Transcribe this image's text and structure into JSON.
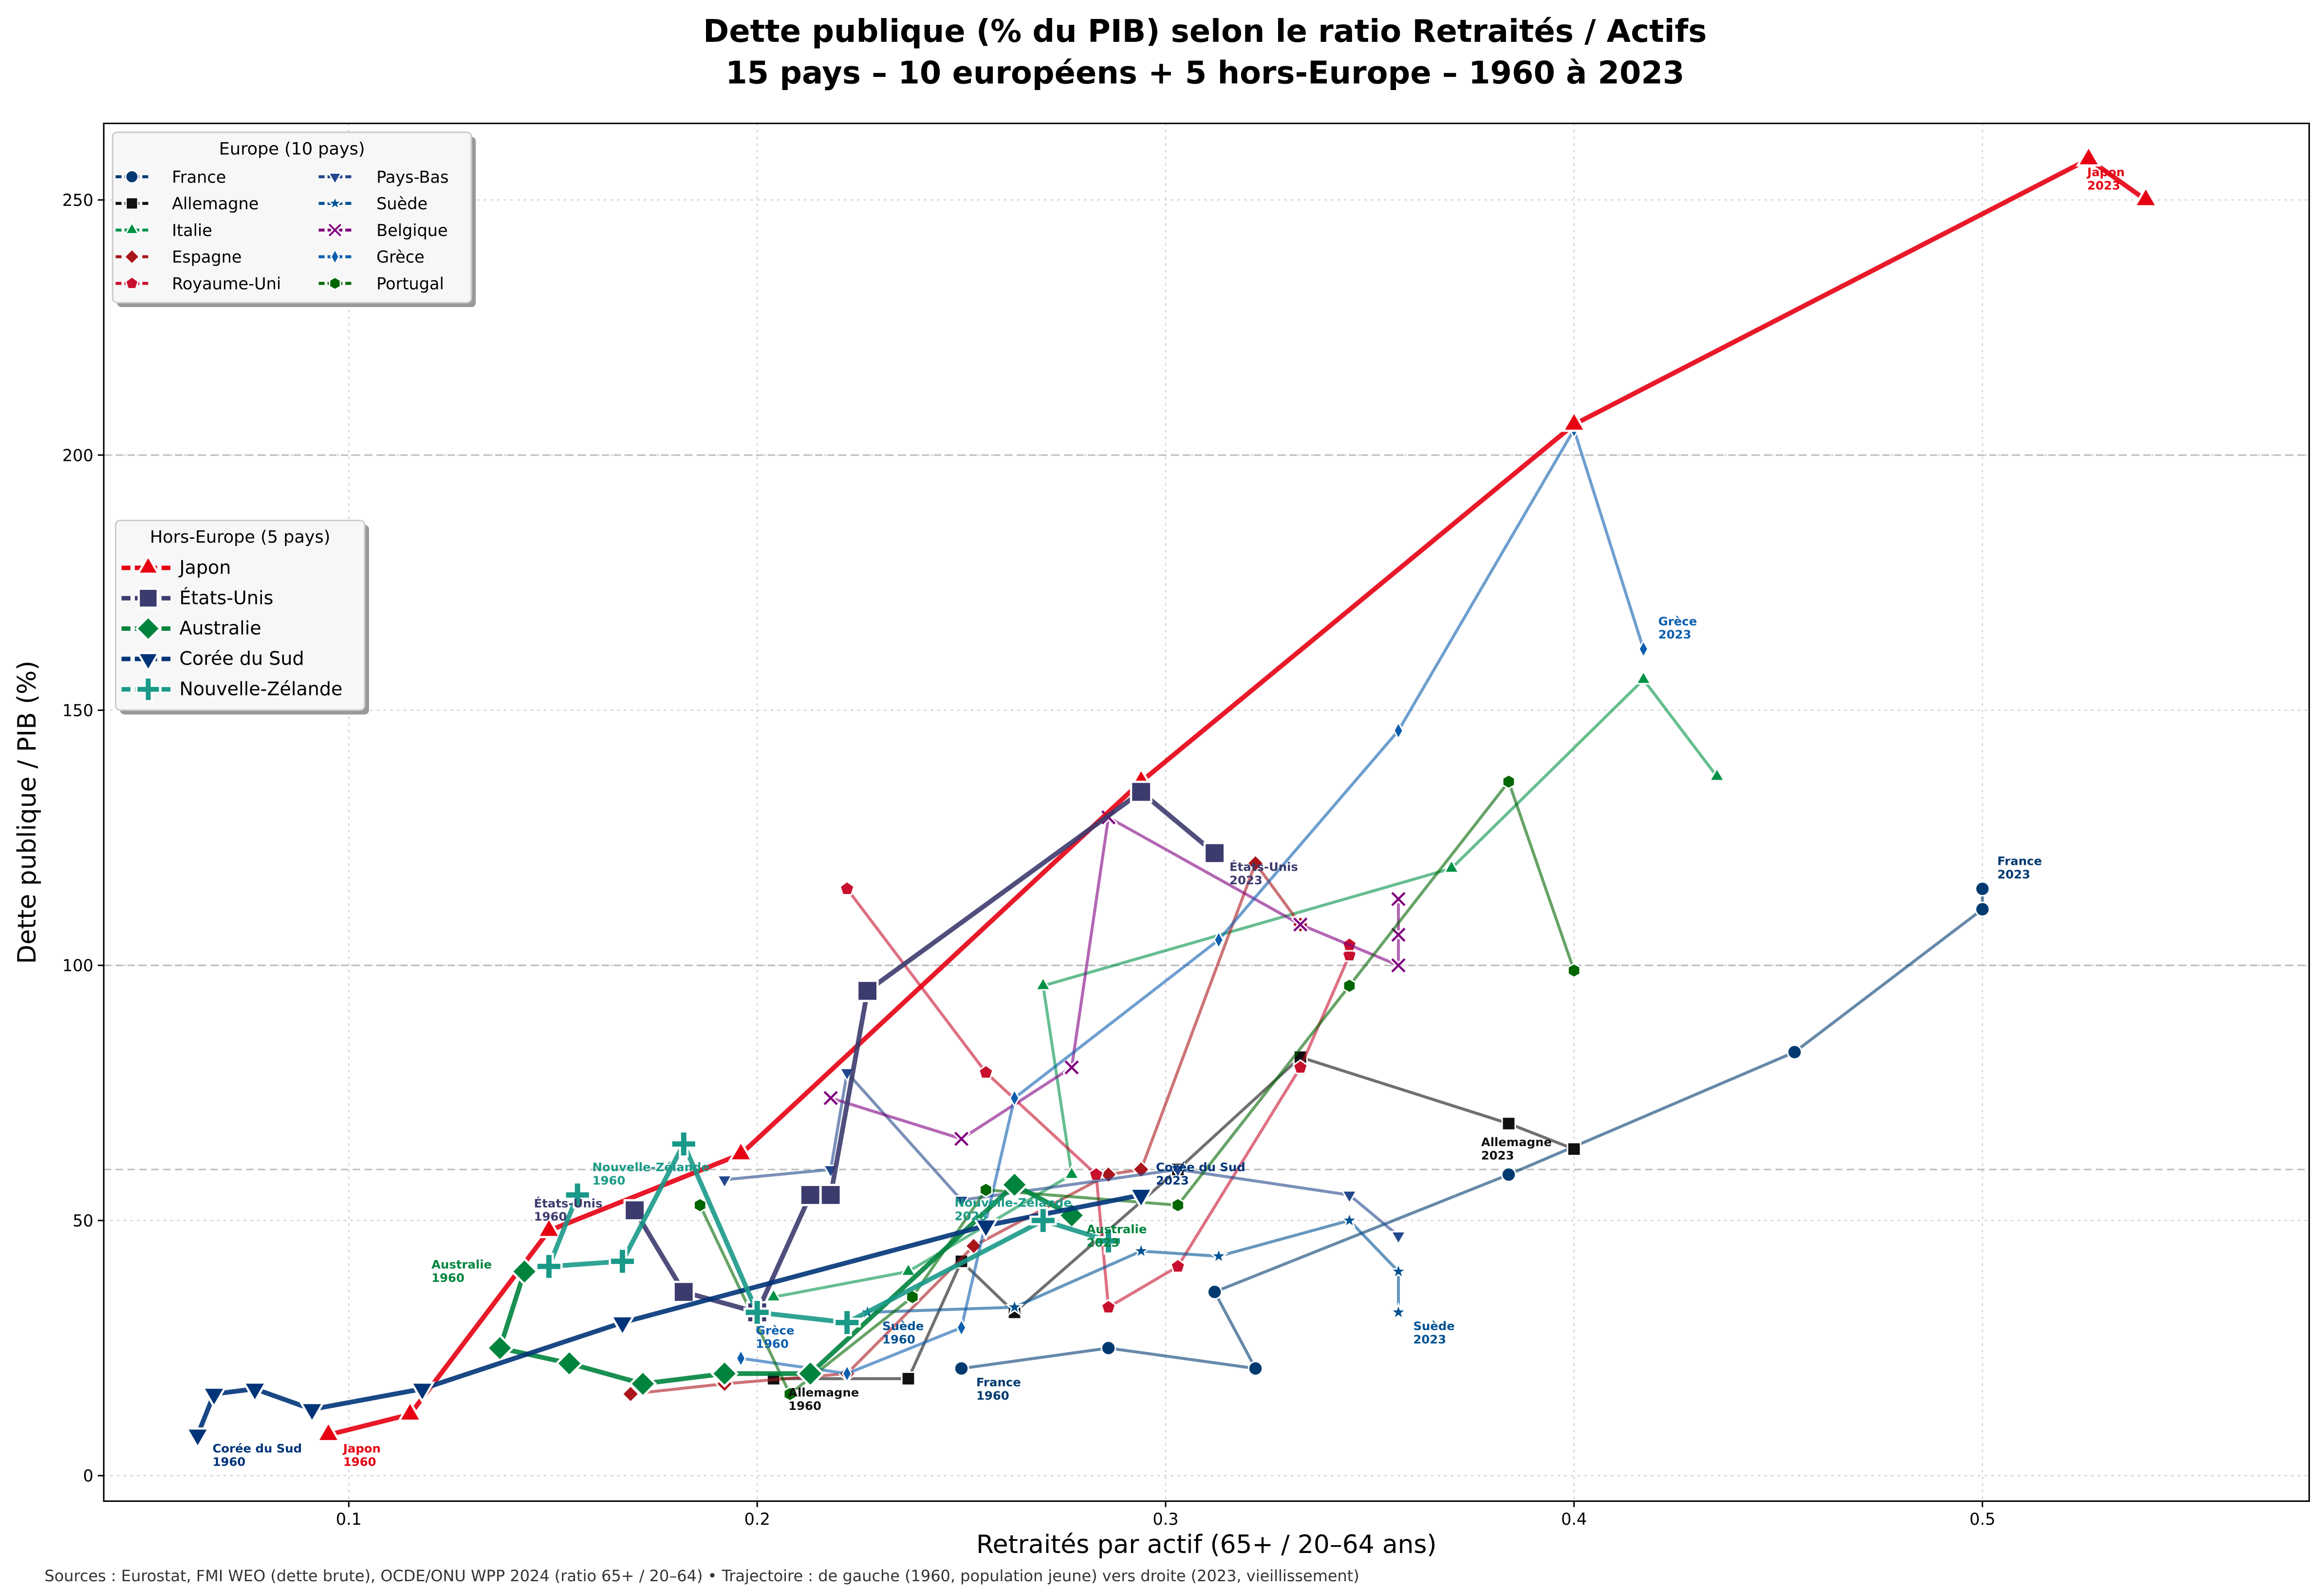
{
  "chart_data": {
    "type": "line",
    "title": [
      "Dette publique (% du PIB) selon le ratio Retraités / Actifs",
      "15 pays – 10 européens + 5 hors-Europe – 1960 à 2023"
    ],
    "xlabel": "Retraités par actif (65+ / 20–64 ans)",
    "ylabel": "Dette publique / PIB (%)",
    "xlim": [
      0.04,
      0.58
    ],
    "ylim": [
      -5,
      265
    ],
    "xticks": [
      "0.1",
      "0.2",
      "0.3",
      "0.4",
      "0.5"
    ],
    "xtick_values": [
      0.1,
      0.2,
      0.3,
      0.4,
      0.5
    ],
    "yticks": [
      "0",
      "50",
      "100",
      "150",
      "200",
      "250"
    ],
    "ytick_values": [
      0,
      50,
      100,
      150,
      200,
      250
    ],
    "grid": true,
    "reference_lines_y": [
      60,
      100,
      200
    ],
    "source_note": "Sources : Eurostat, FMI WEO (dette brute), OCDE/ONU WPP 2024 (ratio 65+ / 20–64) • Trajectoire : de gauche (1960, population jeune) vers droite (2023, vieillissement)",
    "legends": [
      {
        "title": "Europe (10 pays)",
        "placement": "top-left",
        "group": "europe"
      },
      {
        "title": "Hors-Europe (5 pays)",
        "placement": "center-left",
        "group": "hors"
      }
    ],
    "series": [
      {
        "name": "France",
        "group": "europe",
        "color": "#003a70",
        "marker": "circle",
        "points": [
          [
            0.25,
            21
          ],
          [
            0.286,
            25
          ],
          [
            0.322,
            21
          ],
          [
            0.312,
            36
          ],
          [
            0.384,
            59
          ],
          [
            0.454,
            83
          ],
          [
            0.5,
            111
          ],
          [
            0.5,
            115
          ]
        ]
      },
      {
        "name": "Allemagne",
        "group": "europe",
        "color": "#111111",
        "marker": "square",
        "points": [
          [
            0.204,
            19
          ],
          [
            0.237,
            19
          ],
          [
            0.25,
            42
          ],
          [
            0.263,
            32
          ],
          [
            0.303,
            60
          ],
          [
            0.333,
            82
          ],
          [
            0.384,
            69
          ],
          [
            0.4,
            64
          ]
        ]
      },
      {
        "name": "Italie",
        "group": "europe",
        "color": "#009246",
        "marker": "triangle-up",
        "points": [
          [
            0.204,
            35
          ],
          [
            0.237,
            40
          ],
          [
            0.277,
            59
          ],
          [
            0.27,
            96
          ],
          [
            0.37,
            119
          ],
          [
            0.417,
            156
          ],
          [
            0.435,
            137
          ]
        ]
      },
      {
        "name": "Espagne",
        "group": "europe",
        "color": "#aa151b",
        "marker": "diamond",
        "points": [
          [
            0.169,
            16
          ],
          [
            0.192,
            18
          ],
          [
            0.222,
            20
          ],
          [
            0.253,
            45
          ],
          [
            0.286,
            59
          ],
          [
            0.294,
            60
          ],
          [
            0.322,
            120
          ],
          [
            0.333,
            108
          ]
        ]
      },
      {
        "name": "Royaume-Uni",
        "group": "europe",
        "color": "#c8102e",
        "marker": "pentagon",
        "points": [
          [
            0.222,
            115
          ],
          [
            0.256,
            79
          ],
          [
            0.283,
            59
          ],
          [
            0.286,
            33
          ],
          [
            0.303,
            41
          ],
          [
            0.333,
            80
          ],
          [
            0.345,
            102
          ],
          [
            0.345,
            104
          ]
        ]
      },
      {
        "name": "Pays-Bas",
        "group": "europe",
        "color": "#21468b",
        "marker": "triangle-down",
        "points": [
          [
            0.192,
            58
          ],
          [
            0.218,
            60
          ],
          [
            0.222,
            79
          ],
          [
            0.25,
            54
          ],
          [
            0.303,
            60
          ],
          [
            0.345,
            55
          ],
          [
            0.357,
            47
          ]
        ]
      },
      {
        "name": "Suède",
        "group": "europe",
        "color": "#005293",
        "marker": "star",
        "points": [
          [
            0.227,
            32
          ],
          [
            0.263,
            33
          ],
          [
            0.294,
            44
          ],
          [
            0.313,
            43
          ],
          [
            0.345,
            50
          ],
          [
            0.357,
            40
          ],
          [
            0.357,
            32
          ]
        ]
      },
      {
        "name": "Belgique",
        "group": "europe",
        "color": "#800080",
        "marker": "x",
        "points": [
          [
            0.218,
            74
          ],
          [
            0.25,
            66
          ],
          [
            0.277,
            80
          ],
          [
            0.286,
            129
          ],
          [
            0.333,
            108
          ],
          [
            0.357,
            100
          ],
          [
            0.357,
            106
          ],
          [
            0.357,
            113
          ]
        ]
      },
      {
        "name": "Grèce",
        "group": "europe",
        "color": "#0d5eaf",
        "marker": "thin-diamond",
        "points": [
          [
            0.196,
            23
          ],
          [
            0.222,
            20
          ],
          [
            0.25,
            29
          ],
          [
            0.263,
            74
          ],
          [
            0.313,
            105
          ],
          [
            0.357,
            146
          ],
          [
            0.4,
            205
          ],
          [
            0.417,
            162
          ]
        ]
      },
      {
        "name": "Portugal",
        "group": "europe",
        "color": "#006600",
        "marker": "hexagon",
        "points": [
          [
            0.186,
            53
          ],
          [
            0.208,
            16
          ],
          [
            0.238,
            35
          ],
          [
            0.256,
            56
          ],
          [
            0.303,
            53
          ],
          [
            0.345,
            96
          ],
          [
            0.384,
            136
          ],
          [
            0.4,
            99
          ]
        ]
      },
      {
        "name": "Japon",
        "group": "hors",
        "color": "#e60012",
        "marker": "triangle-up",
        "points": [
          [
            0.095,
            8
          ],
          [
            0.115,
            12
          ],
          [
            0.149,
            48
          ],
          [
            0.196,
            63
          ],
          [
            0.294,
            136
          ],
          [
            0.4,
            206
          ],
          [
            0.526,
            258
          ],
          [
            0.54,
            250
          ]
        ]
      },
      {
        "name": "États-Unis",
        "group": "hors",
        "color": "#3c3b6e",
        "marker": "square",
        "points": [
          [
            0.17,
            52
          ],
          [
            0.182,
            36
          ],
          [
            0.2,
            32
          ],
          [
            0.213,
            55
          ],
          [
            0.218,
            55
          ],
          [
            0.227,
            95
          ],
          [
            0.294,
            134
          ],
          [
            0.312,
            122
          ]
        ]
      },
      {
        "name": "Australie",
        "group": "hors",
        "color": "#00843d",
        "marker": "diamond",
        "points": [
          [
            0.143,
            40
          ],
          [
            0.137,
            25
          ],
          [
            0.154,
            22
          ],
          [
            0.172,
            18
          ],
          [
            0.192,
            20
          ],
          [
            0.213,
            20
          ],
          [
            0.263,
            57
          ],
          [
            0.277,
            51
          ]
        ]
      },
      {
        "name": "Corée du Sud",
        "group": "hors",
        "color": "#003478",
        "marker": "triangle-down",
        "points": [
          [
            0.063,
            8
          ],
          [
            0.067,
            16
          ],
          [
            0.077,
            17
          ],
          [
            0.091,
            13
          ],
          [
            0.118,
            17
          ],
          [
            0.167,
            30
          ],
          [
            0.256,
            49
          ],
          [
            0.294,
            55
          ]
        ]
      },
      {
        "name": "Nouvelle-Zélande",
        "group": "hors",
        "color": "#1a9988",
        "marker": "plus",
        "points": [
          [
            0.156,
            55
          ],
          [
            0.149,
            41
          ],
          [
            0.167,
            42
          ],
          [
            0.182,
            65
          ],
          [
            0.2,
            32
          ],
          [
            0.222,
            30
          ],
          [
            0.27,
            50
          ],
          [
            0.286,
            46
          ]
        ]
      }
    ],
    "annotations": [
      {
        "series": "Corée du Sud",
        "at": "start",
        "lines": [
          "Corée du Sud",
          "1960"
        ]
      },
      {
        "series": "Japon",
        "at": "start",
        "lines": [
          "Japon",
          "1960"
        ]
      },
      {
        "series": "Australie",
        "at": "start",
        "lines": [
          "Australie",
          "1960"
        ],
        "side": "left"
      },
      {
        "series": "États-Unis",
        "at": "start",
        "lines": [
          "États-Unis",
          "1960"
        ],
        "side": "left"
      },
      {
        "series": "Nouvelle-Zélande",
        "at": "start",
        "lines": [
          "Nouvelle-Zélande",
          "1960"
        ]
      },
      {
        "series": "Allemagne",
        "at": "start",
        "lines": [
          "Allemagne",
          "1960"
        ]
      },
      {
        "series": "France",
        "at": "start",
        "lines": [
          "France",
          "1960"
        ]
      },
      {
        "series": "Suède",
        "at": "start",
        "lines": [
          "Suède",
          "1960"
        ]
      },
      {
        "series": "Grèce",
        "at": "start",
        "lines": [
          "Grèce",
          "1960"
        ]
      },
      {
        "series": "Japon",
        "at": "end",
        "lines": [
          "Japon",
          "2023"
        ],
        "side": "left-up"
      },
      {
        "series": "Grèce",
        "at": "end",
        "lines": [
          "Grèce",
          "2023"
        ],
        "side": "up"
      },
      {
        "series": "États-Unis",
        "at": "end",
        "lines": [
          "États-Unis",
          "2023"
        ]
      },
      {
        "series": "France",
        "at": "end",
        "lines": [
          "France",
          "2023"
        ],
        "side": "up"
      },
      {
        "series": "Allemagne",
        "at": "end",
        "lines": [
          "Allemagne",
          "2023"
        ],
        "side": "left"
      },
      {
        "series": "Suède",
        "at": "end",
        "lines": [
          "Suède",
          "2023"
        ]
      },
      {
        "series": "Australie",
        "at": "end",
        "lines": [
          "Australie",
          "2023"
        ]
      },
      {
        "series": "Nouvelle-Zélande",
        "at": "end",
        "lines": [
          "Nouvelle-Zélande",
          "2023"
        ],
        "side": "up"
      },
      {
        "series": "Corée du Sud",
        "at": "end",
        "lines": [
          "Corée du Sud",
          "2023"
        ]
      }
    ]
  }
}
